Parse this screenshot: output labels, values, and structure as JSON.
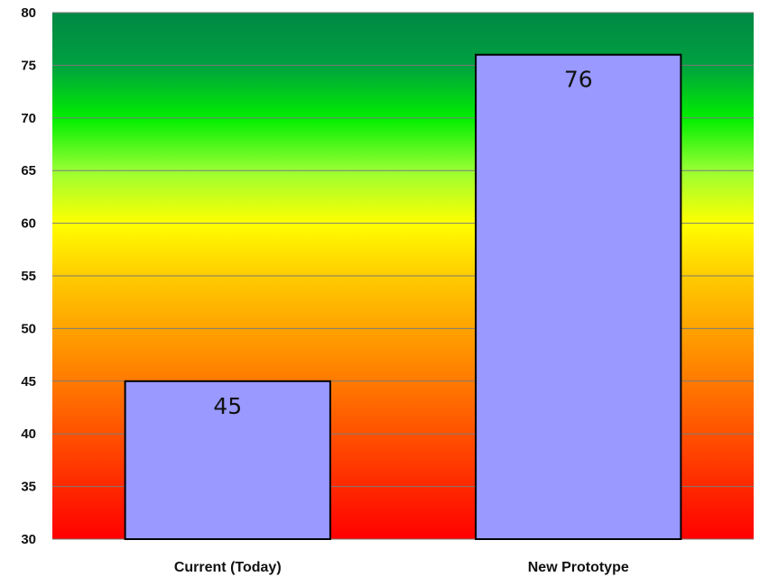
{
  "chart_data": {
    "type": "bar",
    "title": "",
    "xlabel": "",
    "ylabel": "",
    "categories": [
      "Current (Today)",
      "New Prototype"
    ],
    "values": [
      45,
      76
    ],
    "data_labels": [
      "45",
      "76"
    ],
    "ylim": [
      30,
      80
    ],
    "yticks": [
      30,
      35,
      40,
      45,
      50,
      55,
      60,
      65,
      70,
      75,
      80
    ],
    "ytick_labels": [
      "30",
      "35",
      "40",
      "45",
      "50",
      "55",
      "60",
      "65",
      "70",
      "75",
      "80"
    ],
    "grid": true,
    "legend": "none",
    "bar_color": "#9999ff",
    "bar_border_color": "#000000",
    "background_gradient": [
      {
        "value": 30,
        "color": "#ff0000"
      },
      {
        "value": 45,
        "color": "#ff7a00"
      },
      {
        "value": 55,
        "color": "#ffcc00"
      },
      {
        "value": 60,
        "color": "#ffff00"
      },
      {
        "value": 65,
        "color": "#99ff33"
      },
      {
        "value": 70,
        "color": "#00ee00"
      },
      {
        "value": 75,
        "color": "#00a040"
      },
      {
        "value": 80,
        "color": "#008844"
      }
    ]
  }
}
